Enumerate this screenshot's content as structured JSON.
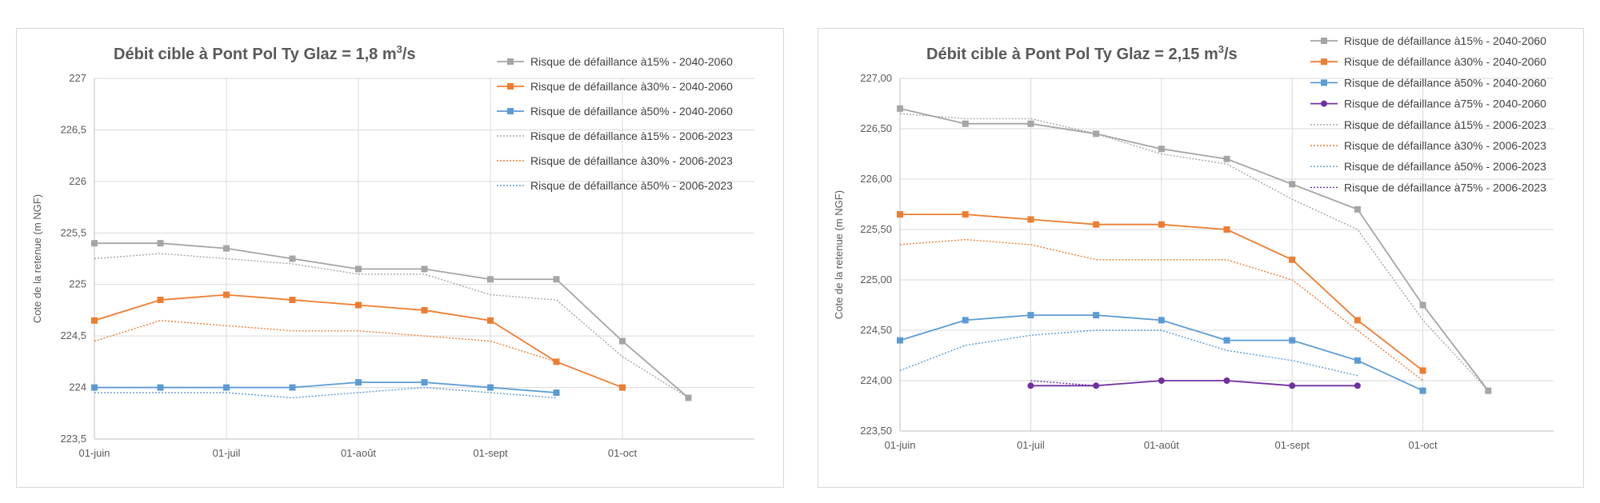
{
  "chart_data": [
    {
      "type": "line",
      "title": "Débit cible à Pont Pol Ty Glaz = 1,8 m³/s",
      "ylabel": "Cote de la retenue (m NGF)",
      "xlabel": "",
      "x_ticks": [
        "01-juin",
        "01-juil",
        "01-août",
        "01-sept",
        "01-oct"
      ],
      "x_tick_positions": [
        0,
        2,
        4,
        6,
        8
      ],
      "x_range": [
        0,
        10
      ],
      "ylim": [
        223.5,
        227
      ],
      "y_ticks": [
        "227",
        "226,5",
        "226",
        "225,5",
        "225",
        "224,5",
        "224",
        "223,5"
      ],
      "y_tick_values": [
        227,
        226.5,
        226,
        225.5,
        225,
        224.5,
        224,
        223.5
      ],
      "grid": true,
      "legend_position": "top-right",
      "series": [
        {
          "name": "Risque de défaillance à15% - 2040-2060",
          "color": "#a5a5a5",
          "style": "solid-square",
          "points": [
            [
              0,
              225.4
            ],
            [
              1,
              225.4
            ],
            [
              2,
              225.35
            ],
            [
              3,
              225.25
            ],
            [
              4,
              225.15
            ],
            [
              5,
              225.15
            ],
            [
              6,
              225.05
            ],
            [
              7,
              225.05
            ],
            [
              8,
              224.45
            ],
            [
              9,
              223.9
            ]
          ]
        },
        {
          "name": "Risque de défaillance à30% - 2040-2060",
          "color": "#ed7d31",
          "style": "solid-square",
          "points": [
            [
              0,
              224.65
            ],
            [
              1,
              224.85
            ],
            [
              2,
              224.9
            ],
            [
              3,
              224.85
            ],
            [
              4,
              224.8
            ],
            [
              5,
              224.75
            ],
            [
              6,
              224.65
            ],
            [
              7,
              224.25
            ],
            [
              8,
              224.0
            ]
          ]
        },
        {
          "name": "Risque de défaillance à50% - 2040-2060",
          "color": "#5b9bd5",
          "style": "solid-square",
          "points": [
            [
              0,
              224.0
            ],
            [
              1,
              224.0
            ],
            [
              2,
              224.0
            ],
            [
              3,
              224.0
            ],
            [
              4,
              224.05
            ],
            [
              5,
              224.05
            ],
            [
              6,
              224.0
            ],
            [
              7,
              223.95
            ]
          ]
        },
        {
          "name": "Risque de défaillance à15% - 2006-2023",
          "color": "#a5a5a5",
          "style": "dotted",
          "points": [
            [
              0,
              225.25
            ],
            [
              1,
              225.3
            ],
            [
              2,
              225.25
            ],
            [
              3,
              225.2
            ],
            [
              4,
              225.1
            ],
            [
              5,
              225.1
            ],
            [
              6,
              224.9
            ],
            [
              7,
              224.85
            ],
            [
              8,
              224.3
            ],
            [
              9,
              223.9
            ]
          ]
        },
        {
          "name": "Risque de défaillance à30% - 2006-2023",
          "color": "#ed7d31",
          "style": "dotted",
          "points": [
            [
              0,
              224.45
            ],
            [
              1,
              224.65
            ],
            [
              2,
              224.6
            ],
            [
              3,
              224.55
            ],
            [
              4,
              224.55
            ],
            [
              5,
              224.5
            ],
            [
              6,
              224.45
            ],
            [
              7,
              224.25
            ],
            [
              8,
              224.0
            ]
          ]
        },
        {
          "name": "Risque de défaillance à50% - 2006-2023",
          "color": "#5b9bd5",
          "style": "dotted",
          "points": [
            [
              0,
              223.95
            ],
            [
              1,
              223.95
            ],
            [
              2,
              223.95
            ],
            [
              3,
              223.9
            ],
            [
              4,
              223.95
            ],
            [
              5,
              224.0
            ],
            [
              6,
              223.95
            ],
            [
              7,
              223.9
            ]
          ]
        }
      ]
    },
    {
      "type": "line",
      "title": "Débit cible à Pont Pol Ty Glaz = 2,15 m³/s",
      "ylabel": "Cote de la retenue (m NGF)",
      "xlabel": "",
      "x_ticks": [
        "01-juin",
        "01-juil",
        "01-août",
        "01-sept",
        "01-oct"
      ],
      "x_tick_positions": [
        0,
        2,
        4,
        6,
        8
      ],
      "x_range": [
        0,
        10
      ],
      "ylim": [
        223.5,
        227
      ],
      "y_ticks": [
        "227,00",
        "226,50",
        "226,00",
        "225,50",
        "225,00",
        "224,50",
        "224,00",
        "223,50"
      ],
      "y_tick_values": [
        227,
        226.5,
        226,
        225.5,
        225,
        224.5,
        224,
        223.5
      ],
      "grid": true,
      "legend_position": "top-right",
      "series": [
        {
          "name": "Risque de défaillance à15% - 2040-2060",
          "color": "#a5a5a5",
          "style": "solid-square",
          "points": [
            [
              0,
              226.7
            ],
            [
              1,
              226.55
            ],
            [
              2,
              226.55
            ],
            [
              3,
              226.45
            ],
            [
              4,
              226.3
            ],
            [
              5,
              226.2
            ],
            [
              6,
              225.95
            ],
            [
              7,
              225.7
            ],
            [
              8,
              224.75
            ],
            [
              9,
              223.9
            ]
          ]
        },
        {
          "name": "Risque de défaillance à30% - 2040-2060",
          "color": "#ed7d31",
          "style": "solid-square",
          "points": [
            [
              0,
              225.65
            ],
            [
              1,
              225.65
            ],
            [
              2,
              225.6
            ],
            [
              3,
              225.55
            ],
            [
              4,
              225.55
            ],
            [
              5,
              225.5
            ],
            [
              6,
              225.2
            ],
            [
              7,
              224.6
            ],
            [
              8,
              224.1
            ]
          ]
        },
        {
          "name": "Risque de défaillance à50% - 2040-2060",
          "color": "#5b9bd5",
          "style": "solid-square",
          "points": [
            [
              0,
              224.4
            ],
            [
              1,
              224.6
            ],
            [
              2,
              224.65
            ],
            [
              3,
              224.65
            ],
            [
              4,
              224.6
            ],
            [
              5,
              224.4
            ],
            [
              6,
              224.4
            ],
            [
              7,
              224.2
            ],
            [
              8,
              223.9
            ]
          ]
        },
        {
          "name": "Risque de défaillance à75% - 2040-2060",
          "color": "#7030a0",
          "style": "solid-circle",
          "points": [
            [
              2,
              223.95
            ],
            [
              3,
              223.95
            ],
            [
              4,
              224.0
            ],
            [
              5,
              224.0
            ],
            [
              6,
              223.95
            ],
            [
              7,
              223.95
            ]
          ]
        },
        {
          "name": "Risque de défaillance à15% - 2006-2023",
          "color": "#a5a5a5",
          "style": "dotted",
          "points": [
            [
              0,
              226.65
            ],
            [
              1,
              226.6
            ],
            [
              2,
              226.6
            ],
            [
              3,
              226.45
            ],
            [
              4,
              226.25
            ],
            [
              5,
              226.15
            ],
            [
              6,
              225.8
            ],
            [
              7,
              225.5
            ],
            [
              8,
              224.6
            ],
            [
              9,
              223.9
            ]
          ]
        },
        {
          "name": "Risque de défaillance à30% - 2006-2023",
          "color": "#ed7d31",
          "style": "dotted",
          "points": [
            [
              0,
              225.35
            ],
            [
              1,
              225.4
            ],
            [
              2,
              225.35
            ],
            [
              3,
              225.2
            ],
            [
              4,
              225.2
            ],
            [
              5,
              225.2
            ],
            [
              6,
              225.0
            ],
            [
              7,
              224.5
            ],
            [
              8,
              224.0
            ]
          ]
        },
        {
          "name": "Risque de défaillance à50% - 2006-2023",
          "color": "#5b9bd5",
          "style": "dotted",
          "points": [
            [
              0,
              224.1
            ],
            [
              1,
              224.35
            ],
            [
              2,
              224.45
            ],
            [
              3,
              224.5
            ],
            [
              4,
              224.5
            ],
            [
              5,
              224.3
            ],
            [
              6,
              224.2
            ],
            [
              7,
              224.05
            ]
          ]
        },
        {
          "name": "Risque de défaillance à75% - 2006-2023",
          "color": "#7030a0",
          "style": "dotted",
          "points": [
            [
              2,
              224.0
            ],
            [
              3,
              223.95
            ]
          ]
        }
      ]
    }
  ]
}
